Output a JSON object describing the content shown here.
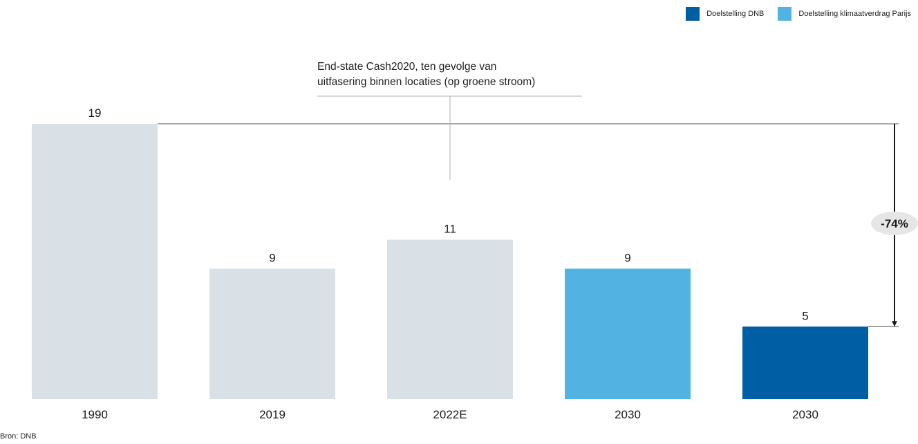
{
  "legend": [
    {
      "label": "Doelstelling DNB",
      "color": "#005ea5"
    },
    {
      "label": "Doelstelling klimaatverdrag Parijs",
      "color": "#52b3e3"
    }
  ],
  "annotation": {
    "line1": "End-state Cash2020, ten gevolge van",
    "line2": "uitfasering binnen locaties (op groene stroom)"
  },
  "source": "Bron: DNB",
  "chart_data": {
    "type": "bar",
    "title": "",
    "xlabel": "",
    "ylabel": "",
    "categories": [
      "1990",
      "2019",
      "2022E",
      "2030",
      "2030"
    ],
    "values": [
      19,
      9,
      11,
      9,
      5
    ],
    "value_labels": [
      "19",
      "9",
      "11",
      "9",
      "5"
    ],
    "colors": [
      "#d9e1e7",
      "#d9e1e7",
      "#d9e1e7",
      "#52b3e3",
      "#005ea5"
    ],
    "ylim": [
      0,
      19
    ],
    "grid": false,
    "legend_position": "top-right",
    "reduction_label": "-74%"
  }
}
